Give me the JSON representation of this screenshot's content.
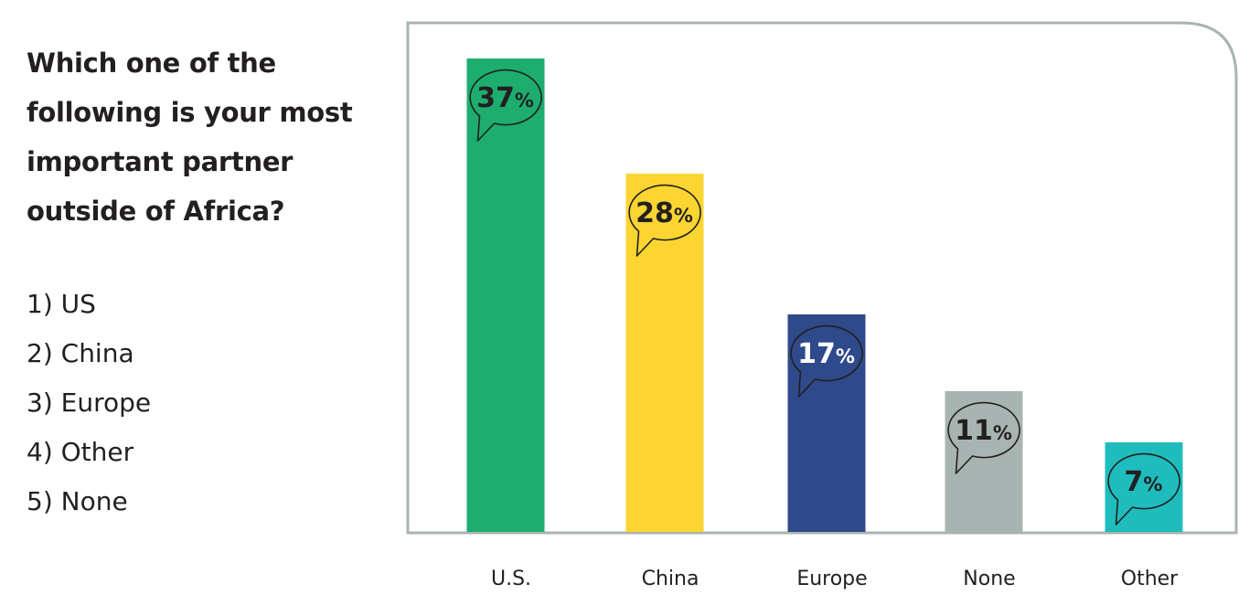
{
  "question": "Which one of the following is your most important partner outside of Africa?",
  "options": [
    "1) US",
    "2) China",
    "3) Europe",
    "4) Other",
    "5) None"
  ],
  "chart_data": {
    "type": "bar",
    "categories": [
      "U.S.",
      "China",
      "Europe",
      "None",
      "Other"
    ],
    "values": [
      37,
      28,
      17,
      11,
      7
    ],
    "value_suffix": "%",
    "ylim": [
      0,
      37
    ],
    "colors": [
      "#1dad6f",
      "#fcd531",
      "#2f4a8a",
      "#a8b4b2",
      "#1fbcbd"
    ],
    "label_colors": [
      "#231f20",
      "#231f20",
      "#ffffff",
      "#231f20",
      "#231f20"
    ],
    "grid": false,
    "legend": "none"
  }
}
